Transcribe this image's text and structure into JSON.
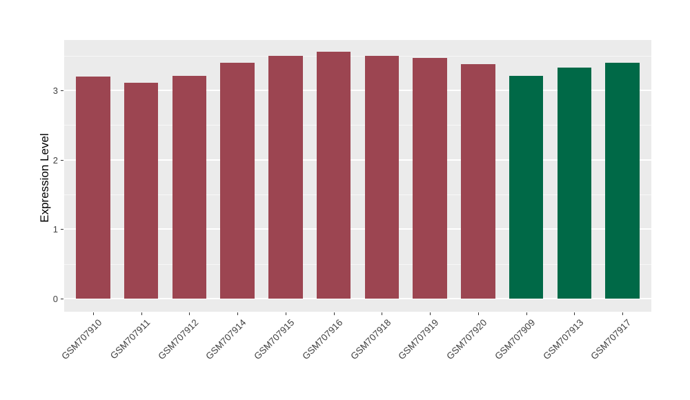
{
  "chart_data": {
    "type": "bar",
    "title": "",
    "xlabel": "",
    "ylabel": "Expression Level",
    "categories": [
      "GSM707910",
      "GSM707911",
      "GSM707912",
      "GSM707914",
      "GSM707915",
      "GSM707916",
      "GSM707918",
      "GSM707919",
      "GSM707920",
      "GSM707909",
      "GSM707913",
      "GSM707917"
    ],
    "values": [
      3.2,
      3.11,
      3.21,
      3.4,
      3.5,
      3.56,
      3.5,
      3.47,
      3.38,
      3.21,
      3.33,
      3.4
    ],
    "bar_colors": [
      "#9C4551",
      "#9C4551",
      "#9C4551",
      "#9C4551",
      "#9C4551",
      "#9C4551",
      "#9C4551",
      "#9C4551",
      "#9C4551",
      "#006947",
      "#006947",
      "#006947"
    ],
    "group_colors": {
      "maroon": "#9C4551",
      "green": "#006947"
    },
    "y_ticks": [
      0,
      1,
      2,
      3
    ],
    "y_minor_ticks": [
      0.5,
      1.5,
      2.5,
      3.5
    ],
    "ylim": [
      -0.19,
      3.73
    ],
    "grid": true,
    "legend_position": "none",
    "panel_bg": "#EBEBEB",
    "grid_major_color": "#FFFFFF",
    "grid_minor_color": "#F7F7F7",
    "tick_mark_color": "#333333",
    "axis_text_color": "#404040",
    "axis_title_color": "#000000",
    "figure_bg": "#FFFFFF"
  }
}
